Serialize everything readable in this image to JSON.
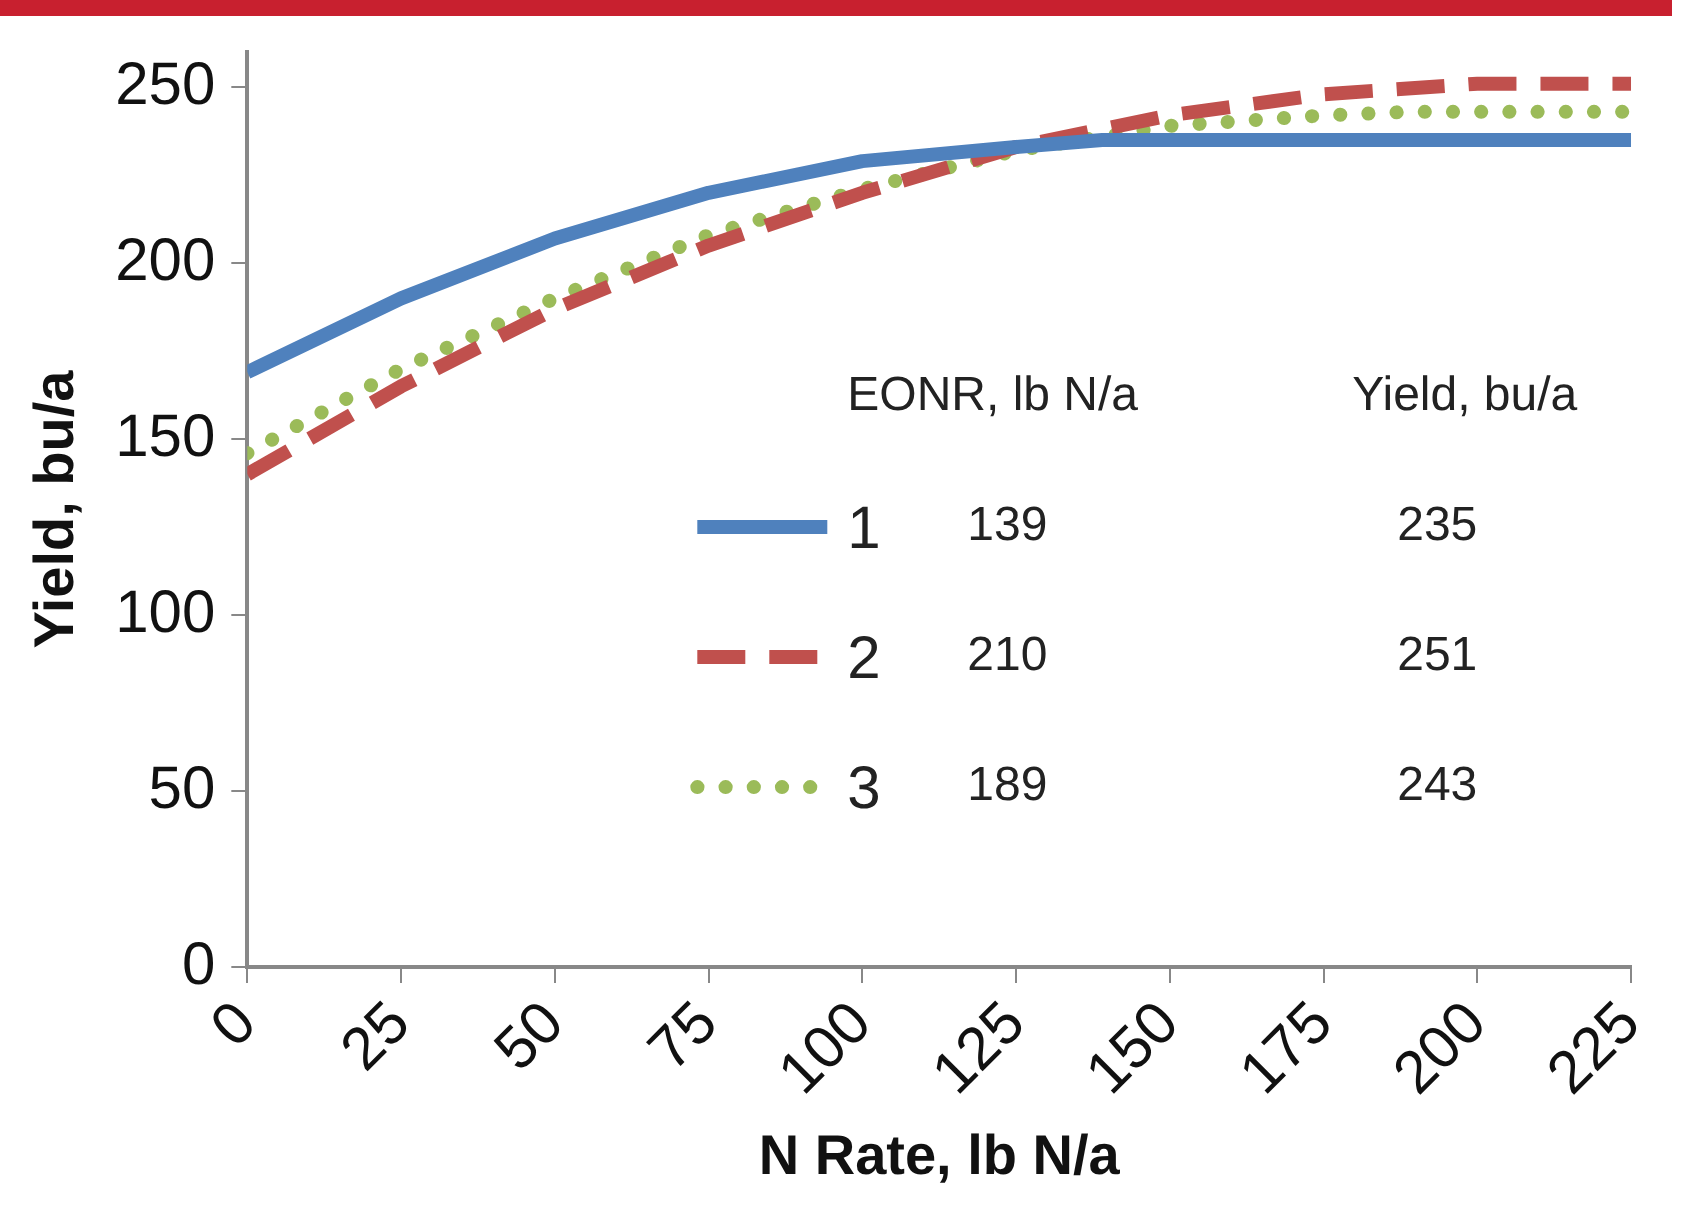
{
  "chart_data": {
    "type": "line",
    "xlabel": "N Rate, lb N/a",
    "ylabel": "Yield, bu/a",
    "xlim": [
      0,
      225
    ],
    "xticks": [
      0,
      25,
      50,
      75,
      100,
      125,
      150,
      175,
      200,
      225
    ],
    "ylim": [
      0,
      260
    ],
    "yticks": [
      0,
      50,
      100,
      150,
      200,
      250
    ],
    "grid": false,
    "legend": "bottom left",
    "marker": "none",
    "annotations": [
      "EONR, lb N/a",
      "Yield, bu/a",
      "139",
      "235",
      "210",
      "251",
      "189",
      "243"
    ],
    "series": [
      {
        "name": "1",
        "color": "#4f81bd",
        "line_style": "solid",
        "x": [
          0,
          25,
          50,
          75,
          100,
          125,
          139,
          150,
          175,
          200,
          225
        ],
        "values": [
          169,
          190,
          207,
          220,
          229,
          233,
          235,
          235,
          235,
          235,
          235
        ]
      },
      {
        "name": "2",
        "color": "#c0504d",
        "line_style": "dashed",
        "x": [
          0,
          25,
          50,
          75,
          100,
          125,
          150,
          175,
          200,
          210,
          225
        ],
        "values": [
          140,
          165,
          187,
          205,
          220,
          233,
          242,
          248,
          251,
          251,
          251
        ]
      },
      {
        "name": "3",
        "color": "#9bbb59",
        "line_style": "dotted",
        "x": [
          0,
          25,
          50,
          75,
          100,
          125,
          150,
          175,
          189,
          200,
          225
        ],
        "values": [
          146,
          170,
          190,
          208,
          221,
          232,
          239,
          242,
          243,
          243,
          243
        ]
      }
    ]
  }
}
